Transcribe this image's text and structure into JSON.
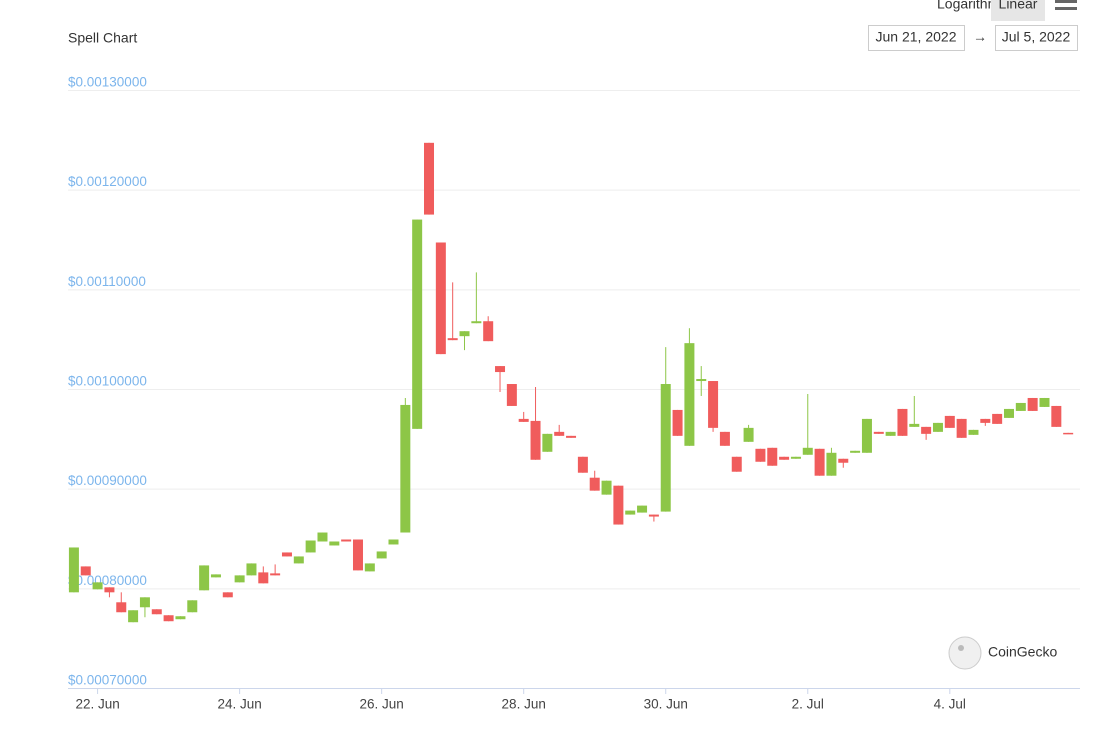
{
  "chart_data": {
    "type": "candlestick",
    "title": "Spell Chart",
    "scale_options": [
      "Logarithmic",
      "Linear"
    ],
    "active_scale": 1,
    "date_range": {
      "from": "Jun 21, 2022",
      "separator": "→",
      "to": "Jul 5, 2022"
    },
    "watermark": "CoinGecko",
    "up_color": "#8dc647",
    "down_color": "#f05c5c",
    "x": [
      "2022-06-21T16:00",
      "2022-06-21T20:00",
      "2022-06-22T00:00",
      "2022-06-22T04:00",
      "2022-06-22T08:00",
      "2022-06-22T12:00",
      "2022-06-22T16:00",
      "2022-06-22T20:00",
      "2022-06-23T00:00",
      "2022-06-23T04:00",
      "2022-06-23T08:00",
      "2022-06-23T12:00",
      "2022-06-23T16:00",
      "2022-06-23T20:00",
      "2022-06-24T00:00",
      "2022-06-24T04:00",
      "2022-06-24T08:00",
      "2022-06-24T12:00",
      "2022-06-24T16:00",
      "2022-06-24T20:00",
      "2022-06-25T00:00",
      "2022-06-25T04:00",
      "2022-06-25T08:00",
      "2022-06-25T12:00",
      "2022-06-25T16:00",
      "2022-06-25T20:00",
      "2022-06-26T00:00",
      "2022-06-26T04:00",
      "2022-06-26T08:00",
      "2022-06-26T12:00",
      "2022-06-26T16:00",
      "2022-06-26T20:00",
      "2022-06-27T00:00",
      "2022-06-27T04:00",
      "2022-06-27T08:00",
      "2022-06-27T12:00",
      "2022-06-27T16:00",
      "2022-06-27T20:00",
      "2022-06-28T00:00",
      "2022-06-28T04:00",
      "2022-06-28T08:00",
      "2022-06-28T12:00",
      "2022-06-28T16:00",
      "2022-06-28T20:00",
      "2022-06-29T00:00",
      "2022-06-29T04:00",
      "2022-06-29T08:00",
      "2022-06-29T12:00",
      "2022-06-29T16:00",
      "2022-06-29T20:00",
      "2022-06-30T00:00",
      "2022-06-30T04:00",
      "2022-06-30T08:00",
      "2022-06-30T12:00",
      "2022-06-30T16:00",
      "2022-06-30T20:00",
      "2022-07-01T00:00",
      "2022-07-01T04:00",
      "2022-07-01T08:00",
      "2022-07-01T12:00",
      "2022-07-01T16:00",
      "2022-07-01T20:00",
      "2022-07-02T00:00",
      "2022-07-02T04:00",
      "2022-07-02T08:00",
      "2022-07-02T12:00",
      "2022-07-02T16:00",
      "2022-07-02T20:00",
      "2022-07-03T00:00",
      "2022-07-03T04:00",
      "2022-07-03T08:00",
      "2022-07-03T12:00",
      "2022-07-03T16:00",
      "2022-07-03T20:00",
      "2022-07-04T00:00",
      "2022-07-04T04:00",
      "2022-07-04T08:00",
      "2022-07-04T12:00",
      "2022-07-04T16:00",
      "2022-07-04T20:00",
      "2022-07-05T00:00",
      "2022-07-05T04:00",
      "2022-07-05T08:00",
      "2022-07-05T12:00",
      "2022-07-05T16:00"
    ],
    "open": [
      0.000796,
      0.000822,
      0.000799,
      0.000801,
      0.000786,
      0.000766,
      0.000781,
      0.000779,
      0.000773,
      0.000769,
      0.000776,
      0.000798,
      0.000811,
      0.000796,
      0.000806,
      0.000813,
      0.000816,
      0.000815,
      0.000836,
      0.000825,
      0.000836,
      0.000847,
      0.000843,
      0.000849,
      0.000849,
      0.000817,
      0.00083,
      0.000844,
      0.000856,
      0.00096,
      0.001247,
      0.001147,
      0.001051,
      0.001053,
      0.001066,
      0.001068,
      0.001023,
      0.001005,
      0.00097,
      0.000968,
      0.000937,
      0.000957,
      0.000953,
      0.000932,
      0.000911,
      0.000894,
      0.000903,
      0.000874,
      0.000876,
      0.000874,
      0.000877,
      0.000979,
      0.000943,
      0.001008,
      0.001008,
      0.000957,
      0.000932,
      0.000947,
      0.00094,
      0.000941,
      0.000932,
      0.00093,
      0.000934,
      0.00094,
      0.000913,
      0.00093,
      0.000936,
      0.000936,
      0.000957,
      0.000953,
      0.00098,
      0.000962,
      0.000962,
      0.000957,
      0.000973,
      0.00097,
      0.000954,
      0.00097,
      0.000975,
      0.000971,
      0.000978,
      0.000991,
      0.000982,
      0.000983,
      0.000956
    ],
    "high": [
      0.000841,
      0.000822,
      0.000806,
      0.000801,
      0.000796,
      0.000778,
      0.000791,
      0.000779,
      0.000773,
      0.000772,
      0.000788,
      0.000823,
      0.000814,
      0.000796,
      0.000813,
      0.000825,
      0.000822,
      0.000824,
      0.000836,
      0.000832,
      0.000848,
      0.000856,
      0.000847,
      0.000849,
      0.000849,
      0.000825,
      0.000837,
      0.000849,
      0.000991,
      0.00117,
      0.001247,
      0.001147,
      0.001107,
      0.001058,
      0.001117,
      0.001073,
      0.001023,
      0.001005,
      0.000977,
      0.001002,
      0.000955,
      0.000964,
      0.000953,
      0.000932,
      0.000918,
      0.000908,
      0.000903,
      0.000878,
      0.000883,
      0.000874,
      0.001042,
      0.000979,
      0.001061,
      0.001023,
      0.001008,
      0.000957,
      0.000932,
      0.000964,
      0.00094,
      0.000941,
      0.000932,
      0.000932,
      0.000995,
      0.00094,
      0.000941,
      0.00093,
      0.000938,
      0.00097,
      0.000957,
      0.000957,
      0.00098,
      0.000993,
      0.000962,
      0.000966,
      0.000973,
      0.00097,
      0.000959,
      0.00097,
      0.000975,
      0.00098,
      0.000986,
      0.000991,
      0.000991,
      0.000983,
      0.000956
    ],
    "low": [
      0.000796,
      0.000813,
      0.000799,
      0.000791,
      0.000776,
      0.000766,
      0.000771,
      0.000774,
      0.000767,
      0.000769,
      0.000776,
      0.000798,
      0.000811,
      0.000791,
      0.000806,
      0.000813,
      0.000805,
      0.000813,
      0.000832,
      0.000825,
      0.000836,
      0.000847,
      0.000843,
      0.000847,
      0.000818,
      0.000817,
      0.00083,
      0.000844,
      0.000856,
      0.00096,
      0.001175,
      0.001035,
      0.001049,
      0.001039,
      0.001066,
      0.001048,
      0.000997,
      0.000983,
      0.000967,
      0.000929,
      0.000937,
      0.000953,
      0.000951,
      0.000916,
      0.000898,
      0.000894,
      0.000864,
      0.000874,
      0.000876,
      0.000867,
      0.000877,
      0.000953,
      0.000943,
      0.000993,
      0.000957,
      0.000943,
      0.000917,
      0.000947,
      0.000927,
      0.000923,
      0.000929,
      0.00093,
      0.000934,
      0.000913,
      0.000913,
      0.000921,
      0.000936,
      0.000936,
      0.000955,
      0.000953,
      0.000953,
      0.000962,
      0.000949,
      0.000957,
      0.000961,
      0.000951,
      0.000954,
      0.000963,
      0.000965,
      0.000971,
      0.000978,
      0.000978,
      0.000982,
      0.000962,
      0.000955
    ],
    "close": [
      0.000841,
      0.000813,
      0.000806,
      0.000796,
      0.000776,
      0.000778,
      0.000791,
      0.000774,
      0.000767,
      0.000772,
      0.000788,
      0.000823,
      0.000814,
      0.000791,
      0.000813,
      0.000825,
      0.000805,
      0.000813,
      0.000832,
      0.000832,
      0.000848,
      0.000856,
      0.000847,
      0.000847,
      0.000818,
      0.000825,
      0.000837,
      0.000849,
      0.000984,
      0.00117,
      0.001175,
      0.001035,
      0.001049,
      0.001058,
      0.001068,
      0.001048,
      0.001017,
      0.000983,
      0.000967,
      0.000929,
      0.000955,
      0.000953,
      0.000951,
      0.000916,
      0.000898,
      0.000908,
      0.000864,
      0.000878,
      0.000883,
      0.000872,
      0.001005,
      0.000953,
      0.001046,
      0.00101,
      0.000961,
      0.000943,
      0.000917,
      0.000961,
      0.000927,
      0.000923,
      0.000929,
      0.000932,
      0.000941,
      0.000913,
      0.000936,
      0.000926,
      0.000938,
      0.00097,
      0.000955,
      0.000957,
      0.000953,
      0.000965,
      0.000955,
      0.000966,
      0.000961,
      0.000951,
      0.000959,
      0.000966,
      0.000965,
      0.00098,
      0.000986,
      0.000978,
      0.000991,
      0.000962,
      0.000955
    ],
    "xlim": [
      "2022-06-21T14:00",
      "2022-07-05T20:00"
    ],
    "xticks": [
      {
        "value": "2022-06-22",
        "label": "22. Jun"
      },
      {
        "value": "2022-06-24",
        "label": "24. Jun"
      },
      {
        "value": "2022-06-26",
        "label": "26. Jun"
      },
      {
        "value": "2022-06-28",
        "label": "28. Jun"
      },
      {
        "value": "2022-06-30",
        "label": "30. Jun"
      },
      {
        "value": "2022-07-02",
        "label": "2. Jul"
      },
      {
        "value": "2022-07-04",
        "label": "4. Jul"
      }
    ],
    "ylim": [
      0.0007,
      0.0013
    ],
    "yticks": [
      {
        "value": 0.0007,
        "label": "$0.00070000"
      },
      {
        "value": 0.0008,
        "label": "$0.00080000"
      },
      {
        "value": 0.0009,
        "label": "$0.00090000"
      },
      {
        "value": 0.001,
        "label": "$0.00100000"
      },
      {
        "value": 0.0011,
        "label": "$0.00110000"
      },
      {
        "value": 0.0012,
        "label": "$0.00120000"
      },
      {
        "value": 0.0013,
        "label": "$0.00130000"
      }
    ],
    "grid": true
  }
}
